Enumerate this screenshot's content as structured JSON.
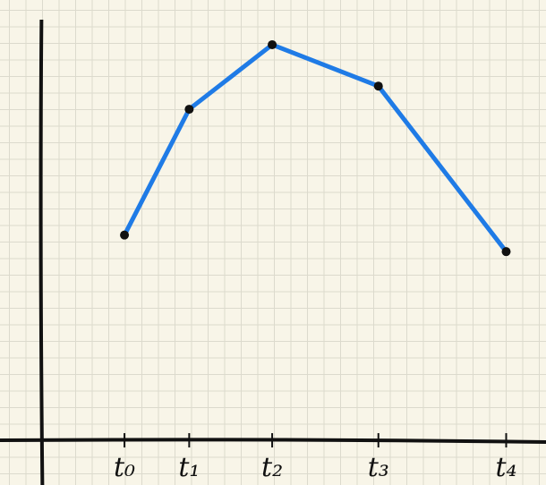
{
  "chart_data": {
    "type": "line",
    "x": [
      5.0,
      8.9,
      13.9,
      20.3,
      28.0
    ],
    "series": [
      {
        "color": "#1f7be6",
        "values": [
          12.4,
          20.0,
          23.9,
          21.4,
          11.4
        ]
      }
    ],
    "xlim": [
      -2.5,
      30.4
    ],
    "ylim": [
      -2.7,
      26.6
    ],
    "xticks": [
      {
        "value": 5.0,
        "label": "t₀"
      },
      {
        "value": 8.9,
        "label": "t₁"
      },
      {
        "value": 13.9,
        "label": "t₂"
      },
      {
        "value": 20.3,
        "label": "t₃"
      },
      {
        "value": 28.0,
        "label": "t₄"
      }
    ]
  }
}
